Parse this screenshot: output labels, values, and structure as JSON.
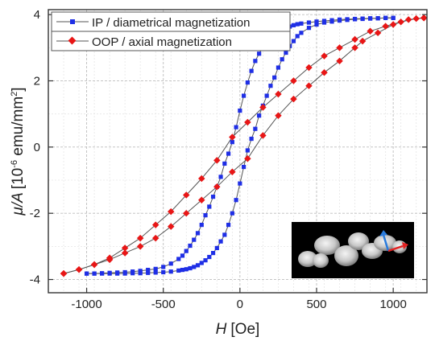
{
  "chart_data": {
    "type": "line",
    "xlabel": {
      "symbol": "H",
      "unit": "[Oe]"
    },
    "ylabel": {
      "symbol": "μ/A",
      "unit_prefix": "[10",
      "unit_exp": "-6",
      "unit_suffix": " emu/mm",
      "unit_sq": "2",
      "unit_close": "]"
    },
    "xlim": [
      -1250,
      1220
    ],
    "ylim": [
      -4.4,
      4.15
    ],
    "x_ticks": [
      -1000,
      -500,
      0,
      500,
      1000
    ],
    "x_tick_labels": [
      "-1000",
      "-500",
      "0",
      "500",
      "1000"
    ],
    "y_ticks": [
      -4,
      -2,
      0,
      2,
      4
    ],
    "y_tick_labels": [
      "-4",
      "-2",
      "0",
      "2",
      "4"
    ],
    "grid": true,
    "legend_position": "top-left",
    "series": [
      {
        "name": "IP / diametrical magnetization",
        "color": "#1f2fe6",
        "marker": "square",
        "branches": [
          {
            "x": [
              1000,
              950,
              900,
              850,
              800,
              750,
              700,
              650,
              600,
              550,
              500,
              450,
              400,
              375,
              350,
              325,
              300,
              275,
              250,
              225,
              200,
              175,
              150,
              125,
              100,
              75,
              50,
              25,
              0,
              -25,
              -50,
              -75,
              -100,
              -125,
              -150,
              -175,
              -200,
              -225,
              -250,
              -275,
              -300,
              -325,
              -350,
              -375,
              -400,
              -450,
              -500,
              -550,
              -600,
              -650,
              -700,
              -750,
              -800,
              -850,
              -900,
              -950,
              -1000
            ],
            "y": [
              3.9,
              3.9,
              3.89,
              3.88,
              3.87,
              3.86,
              3.84,
              3.82,
              3.79,
              3.76,
              3.7,
              3.6,
              3.45,
              3.35,
              3.2,
              3.05,
              2.85,
              2.65,
              2.4,
              2.1,
              1.85,
              1.55,
              1.25,
              0.95,
              0.55,
              0.25,
              -0.1,
              -0.6,
              -1.1,
              -1.6,
              -2.0,
              -2.35,
              -2.65,
              -2.85,
              -3.05,
              -3.2,
              -3.32,
              -3.42,
              -3.5,
              -3.57,
              -3.62,
              -3.66,
              -3.69,
              -3.71,
              -3.73,
              -3.76,
              -3.78,
              -3.79,
              -3.8,
              -3.81,
              -3.81,
              -3.82,
              -3.82,
              -3.82,
              -3.82,
              -3.82,
              -3.82
            ]
          },
          {
            "x": [
              -1000,
              -950,
              -900,
              -850,
              -800,
              -750,
              -700,
              -650,
              -600,
              -550,
              -500,
              -450,
              -400,
              -375,
              -350,
              -325,
              -300,
              -275,
              -250,
              -225,
              -200,
              -175,
              -150,
              -125,
              -100,
              -75,
              -50,
              -25,
              0,
              25,
              50,
              75,
              100,
              125,
              150,
              175,
              200,
              225,
              250,
              275,
              300,
              325,
              350,
              375,
              400,
              450,
              500,
              550,
              600,
              650,
              700,
              750,
              800,
              850,
              900,
              950,
              1000
            ],
            "y": [
              -3.82,
              -3.82,
              -3.81,
              -3.8,
              -3.79,
              -3.78,
              -3.76,
              -3.74,
              -3.71,
              -3.68,
              -3.62,
              -3.52,
              -3.38,
              -3.28,
              -3.14,
              -2.98,
              -2.8,
              -2.6,
              -2.35,
              -2.06,
              -1.8,
              -1.5,
              -1.2,
              -0.9,
              -0.5,
              -0.2,
              0.15,
              0.6,
              1.1,
              1.55,
              1.95,
              2.3,
              2.6,
              2.82,
              3.02,
              3.18,
              3.3,
              3.4,
              3.48,
              3.55,
              3.6,
              3.64,
              3.68,
              3.71,
              3.73,
              3.76,
              3.79,
              3.81,
              3.83,
              3.85,
              3.86,
              3.87,
              3.88,
              3.89,
              3.89,
              3.9,
              3.9
            ]
          }
        ]
      },
      {
        "name": "OOP / axial magnetization",
        "color": "#e81616",
        "marker": "diamond",
        "branches": [
          {
            "x": [
              1200,
              1100,
              1000,
              900,
              800,
              750,
              650,
              550,
              450,
              350,
              250,
              150,
              50,
              -50,
              -150,
              -250,
              -350,
              -450,
              -550,
              -650,
              -750,
              -850,
              -950,
              -1050,
              -1150
            ],
            "y": [
              3.9,
              3.85,
              3.7,
              3.45,
              3.2,
              3.0,
              2.6,
              2.25,
              1.85,
              1.45,
              0.95,
              0.35,
              -0.35,
              -0.75,
              -1.2,
              -1.6,
              -2.0,
              -2.4,
              -2.75,
              -3.0,
              -3.2,
              -3.4,
              -3.55,
              -3.7,
              -3.82
            ]
          },
          {
            "x": [
              -1150,
              -1050,
              -950,
              -850,
              -750,
              -650,
              -550,
              -450,
              -350,
              -250,
              -150,
              -50,
              50,
              150,
              250,
              350,
              450,
              550,
              650,
              750,
              850,
              950,
              1050,
              1150,
              1200
            ],
            "y": [
              -3.82,
              -3.7,
              -3.55,
              -3.35,
              -3.05,
              -2.75,
              -2.35,
              -1.95,
              -1.45,
              -0.95,
              -0.4,
              0.3,
              0.75,
              1.2,
              1.6,
              2.0,
              2.4,
              2.75,
              3.0,
              3.25,
              3.5,
              3.65,
              3.78,
              3.88,
              3.9
            ]
          }
        ]
      }
    ]
  }
}
